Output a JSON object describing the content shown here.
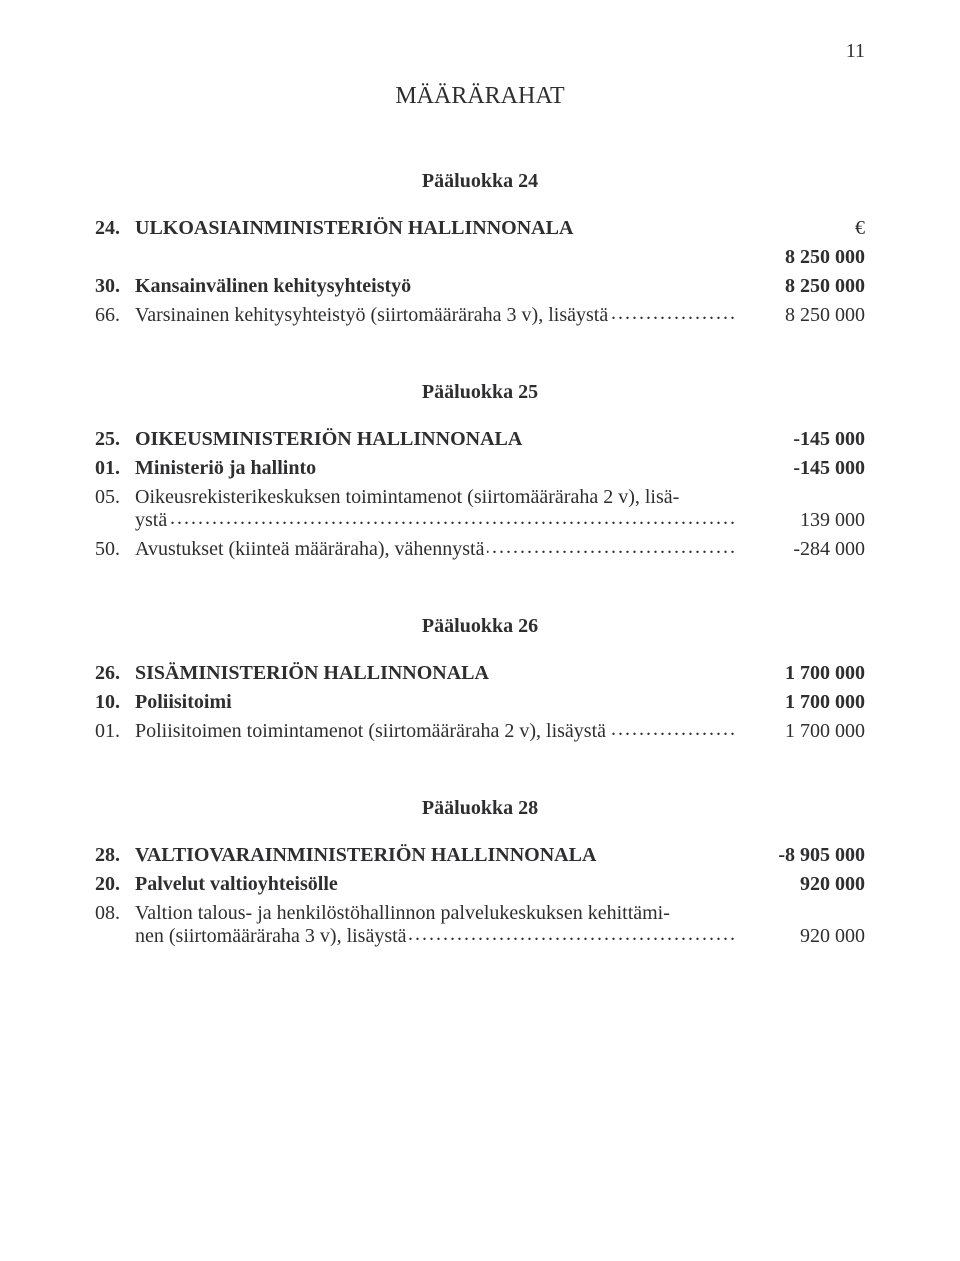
{
  "page_number": "11",
  "page_title": "MÄÄRÄRAHAT",
  "euro_symbol": "€",
  "sections": {
    "s24": {
      "header": "Pääluokka 24",
      "row_main": {
        "num": "24.",
        "label": "ULKOASIAINMINISTERIÖN HALLINNONALA",
        "value": "8 250 000"
      },
      "row_30": {
        "num": "30.",
        "label": "Kansainvälinen kehitysyhteistyö",
        "value": "8 250 000"
      },
      "row_66": {
        "num": "66.",
        "label": "Varsinainen kehitysyhteistyö (siirtomääräraha 3 v), lisäystä",
        "value": "8 250 000"
      }
    },
    "s25": {
      "header": "Pääluokka 25",
      "row_main": {
        "num": "25.",
        "label": "OIKEUSMINISTERIÖN HALLINNONALA",
        "value": "-145 000"
      },
      "row_01": {
        "num": "01.",
        "label": "Ministeriö ja hallinto",
        "value": "-145 000"
      },
      "row_05": {
        "num": "05.",
        "label_line1": "Oikeusrekisterikeskuksen toimintamenot (siirtomääräraha 2 v), lisä-",
        "label_line2": "ystä",
        "value": "139 000"
      },
      "row_50": {
        "num": "50.",
        "label": "Avustukset (kiinteä määräraha), vähennystä",
        "value": "-284 000"
      }
    },
    "s26": {
      "header": "Pääluokka 26",
      "row_main": {
        "num": "26.",
        "label": "SISÄMINISTERIÖN HALLINNONALA",
        "value": "1 700 000"
      },
      "row_10": {
        "num": "10.",
        "label": "Poliisitoimi",
        "value": "1 700 000"
      },
      "row_01": {
        "num": "01.",
        "label": "Poliisitoimen toimintamenot (siirtomääräraha 2 v), lisäystä",
        "value": "1 700 000"
      }
    },
    "s28": {
      "header": "Pääluokka 28",
      "row_main": {
        "num": "28.",
        "label": "VALTIOVARAINMINISTERIÖN HALLINNONALA",
        "value": "-8 905 000"
      },
      "row_20": {
        "num": "20.",
        "label": "Palvelut valtioyhteisölle",
        "value": "920 000"
      },
      "row_08": {
        "num": "08.",
        "label_line1": "Valtion talous- ja henkilöstöhallinnon palvelukeskuksen kehittämi-",
        "label_line2": "nen (siirtomääräraha 3 v), lisäystä",
        "value": "920 000"
      }
    }
  }
}
